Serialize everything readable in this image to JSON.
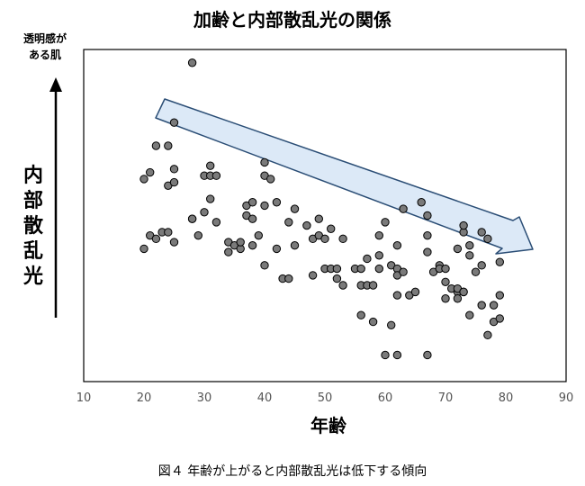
{
  "chart_data": {
    "type": "scatter",
    "title": "加齢と内部散乱光の関係",
    "xlabel": "年齢",
    "ylabel": "内部散乱光",
    "y_arrow_label": [
      "透明感が",
      "ある肌"
    ],
    "xlim": [
      10,
      90
    ],
    "xticks": [
      10,
      20,
      30,
      40,
      50,
      60,
      70,
      80,
      90
    ],
    "y_axis_ticks": "none",
    "grid": false,
    "trend_arrow": "decreasing",
    "y_unit": "relative (0 = bottom of plot area, 100 = top)",
    "points": [
      {
        "x": 20,
        "y": 40
      },
      {
        "x": 20,
        "y": 61
      },
      {
        "x": 21,
        "y": 44
      },
      {
        "x": 21,
        "y": 63
      },
      {
        "x": 22,
        "y": 71
      },
      {
        "x": 22,
        "y": 43
      },
      {
        "x": 23,
        "y": 45
      },
      {
        "x": 24,
        "y": 71
      },
      {
        "x": 24,
        "y": 59
      },
      {
        "x": 24,
        "y": 45
      },
      {
        "x": 25,
        "y": 64
      },
      {
        "x": 25,
        "y": 78
      },
      {
        "x": 25,
        "y": 60
      },
      {
        "x": 25,
        "y": 42
      },
      {
        "x": 28,
        "y": 96
      },
      {
        "x": 28,
        "y": 49
      },
      {
        "x": 28,
        "y": 49
      },
      {
        "x": 29,
        "y": 44
      },
      {
        "x": 30,
        "y": 51
      },
      {
        "x": 30,
        "y": 62
      },
      {
        "x": 31,
        "y": 55
      },
      {
        "x": 31,
        "y": 62
      },
      {
        "x": 31,
        "y": 65
      },
      {
        "x": 32,
        "y": 62
      },
      {
        "x": 32,
        "y": 48
      },
      {
        "x": 34,
        "y": 42
      },
      {
        "x": 34,
        "y": 39
      },
      {
        "x": 35,
        "y": 41
      },
      {
        "x": 36,
        "y": 40
      },
      {
        "x": 36,
        "y": 42
      },
      {
        "x": 37,
        "y": 53
      },
      {
        "x": 37,
        "y": 50
      },
      {
        "x": 38,
        "y": 49
      },
      {
        "x": 38,
        "y": 41
      },
      {
        "x": 38,
        "y": 54
      },
      {
        "x": 39,
        "y": 44
      },
      {
        "x": 40,
        "y": 66
      },
      {
        "x": 40,
        "y": 62
      },
      {
        "x": 40,
        "y": 53
      },
      {
        "x": 40,
        "y": 35
      },
      {
        "x": 41,
        "y": 61
      },
      {
        "x": 42,
        "y": 54
      },
      {
        "x": 42,
        "y": 40
      },
      {
        "x": 43,
        "y": 31
      },
      {
        "x": 44,
        "y": 31
      },
      {
        "x": 44,
        "y": 48
      },
      {
        "x": 45,
        "y": 41
      },
      {
        "x": 45,
        "y": 52
      },
      {
        "x": 47,
        "y": 47
      },
      {
        "x": 48,
        "y": 43
      },
      {
        "x": 48,
        "y": 32
      },
      {
        "x": 49,
        "y": 49
      },
      {
        "x": 49,
        "y": 44
      },
      {
        "x": 50,
        "y": 34
      },
      {
        "x": 50,
        "y": 43
      },
      {
        "x": 51,
        "y": 46
      },
      {
        "x": 51,
        "y": 34
      },
      {
        "x": 52,
        "y": 34
      },
      {
        "x": 52,
        "y": 31
      },
      {
        "x": 53,
        "y": 43
      },
      {
        "x": 53,
        "y": 29
      },
      {
        "x": 55,
        "y": 34
      },
      {
        "x": 56,
        "y": 34
      },
      {
        "x": 56,
        "y": 29
      },
      {
        "x": 56,
        "y": 20
      },
      {
        "x": 57,
        "y": 37
      },
      {
        "x": 57,
        "y": 29
      },
      {
        "x": 58,
        "y": 18
      },
      {
        "x": 58,
        "y": 29
      },
      {
        "x": 59,
        "y": 38
      },
      {
        "x": 59,
        "y": 34
      },
      {
        "x": 59,
        "y": 44
      },
      {
        "x": 60,
        "y": 48
      },
      {
        "x": 60,
        "y": 8
      },
      {
        "x": 61,
        "y": 35
      },
      {
        "x": 61,
        "y": 17
      },
      {
        "x": 62,
        "y": 8
      },
      {
        "x": 62,
        "y": 34
      },
      {
        "x": 62,
        "y": 41
      },
      {
        "x": 62,
        "y": 32
      },
      {
        "x": 62,
        "y": 26
      },
      {
        "x": 63,
        "y": 52
      },
      {
        "x": 63,
        "y": 33
      },
      {
        "x": 64,
        "y": 26
      },
      {
        "x": 65,
        "y": 27
      },
      {
        "x": 66,
        "y": 54
      },
      {
        "x": 67,
        "y": 50
      },
      {
        "x": 67,
        "y": 44
      },
      {
        "x": 67,
        "y": 39
      },
      {
        "x": 67,
        "y": 8
      },
      {
        "x": 68,
        "y": 33
      },
      {
        "x": 69,
        "y": 35
      },
      {
        "x": 69,
        "y": 34
      },
      {
        "x": 70,
        "y": 34
      },
      {
        "x": 70,
        "y": 25
      },
      {
        "x": 70,
        "y": 30
      },
      {
        "x": 71,
        "y": 28
      },
      {
        "x": 72,
        "y": 27
      },
      {
        "x": 72,
        "y": 40
      },
      {
        "x": 72,
        "y": 28
      },
      {
        "x": 72,
        "y": 25
      },
      {
        "x": 73,
        "y": 45
      },
      {
        "x": 73,
        "y": 47
      },
      {
        "x": 73,
        "y": 27
      },
      {
        "x": 73,
        "y": 27
      },
      {
        "x": 74,
        "y": 41
      },
      {
        "x": 74,
        "y": 38
      },
      {
        "x": 74,
        "y": 20
      },
      {
        "x": 75,
        "y": 33
      },
      {
        "x": 76,
        "y": 23
      },
      {
        "x": 76,
        "y": 45
      },
      {
        "x": 76,
        "y": 35
      },
      {
        "x": 77,
        "y": 43
      },
      {
        "x": 77,
        "y": 14
      },
      {
        "x": 78,
        "y": 18
      },
      {
        "x": 78,
        "y": 23
      },
      {
        "x": 79,
        "y": 19
      },
      {
        "x": 79,
        "y": 36
      },
      {
        "x": 79,
        "y": 26
      }
    ]
  },
  "caption": "図４ 年齢が上がると内部散乱光は低下する傾向",
  "colors": {
    "point_fill": "#7a7a7a",
    "point_stroke": "#000000",
    "arrow_fill": "#dce9f7",
    "arrow_stroke": "#2a4d75"
  }
}
